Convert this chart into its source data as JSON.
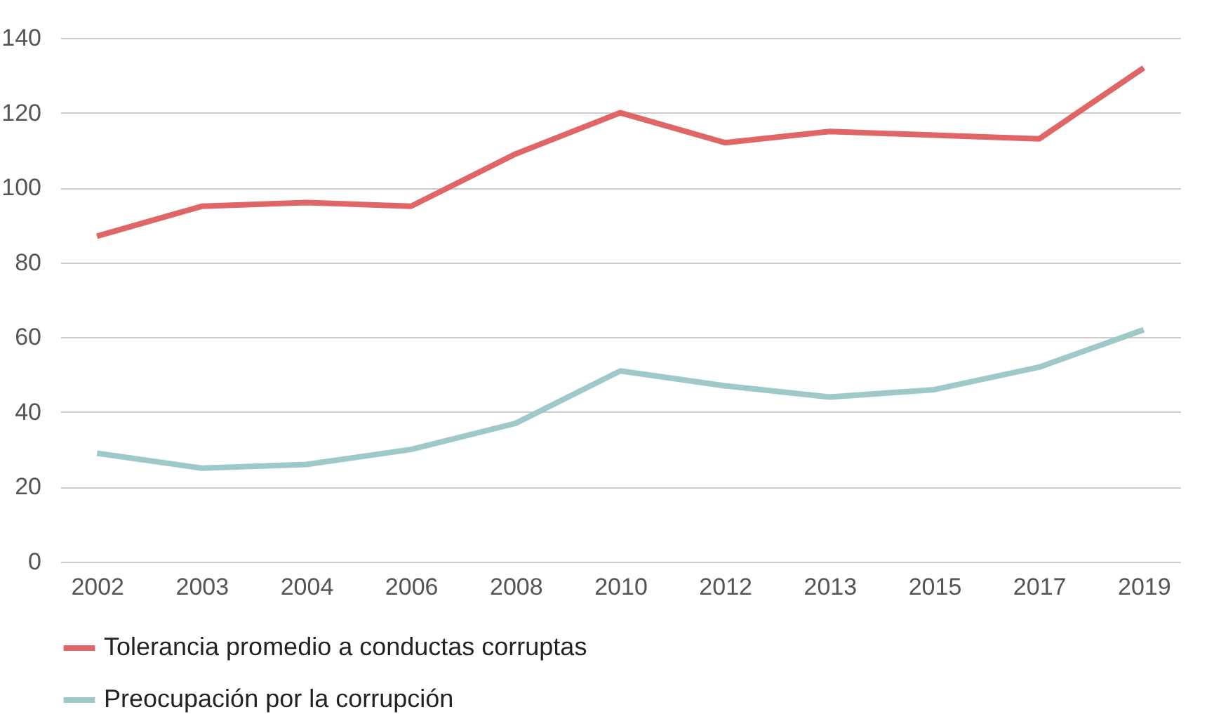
{
  "chart_data": {
    "type": "line",
    "categories": [
      "2002",
      "2003",
      "2004",
      "2006",
      "2008",
      "2010",
      "2012",
      "2013",
      "2015",
      "2017",
      "2019"
    ],
    "series": [
      {
        "name": "Tolerancia promedio a conductas corruptas",
        "color": "#e06566",
        "values": [
          87,
          95,
          96,
          95,
          109,
          120,
          112,
          115,
          114,
          113,
          132
        ]
      },
      {
        "name": "Preocupación por la corrupción",
        "color": "#9fc9c9",
        "values": [
          29,
          25,
          26,
          30,
          37,
          51,
          47,
          44,
          46,
          52,
          62
        ]
      }
    ],
    "ylim": [
      0,
      140
    ],
    "yticks": [
      0,
      20,
      40,
      60,
      80,
      100,
      120,
      140
    ],
    "grid": "y",
    "legend": "bottom",
    "marker": "none",
    "line_style": "solid"
  }
}
